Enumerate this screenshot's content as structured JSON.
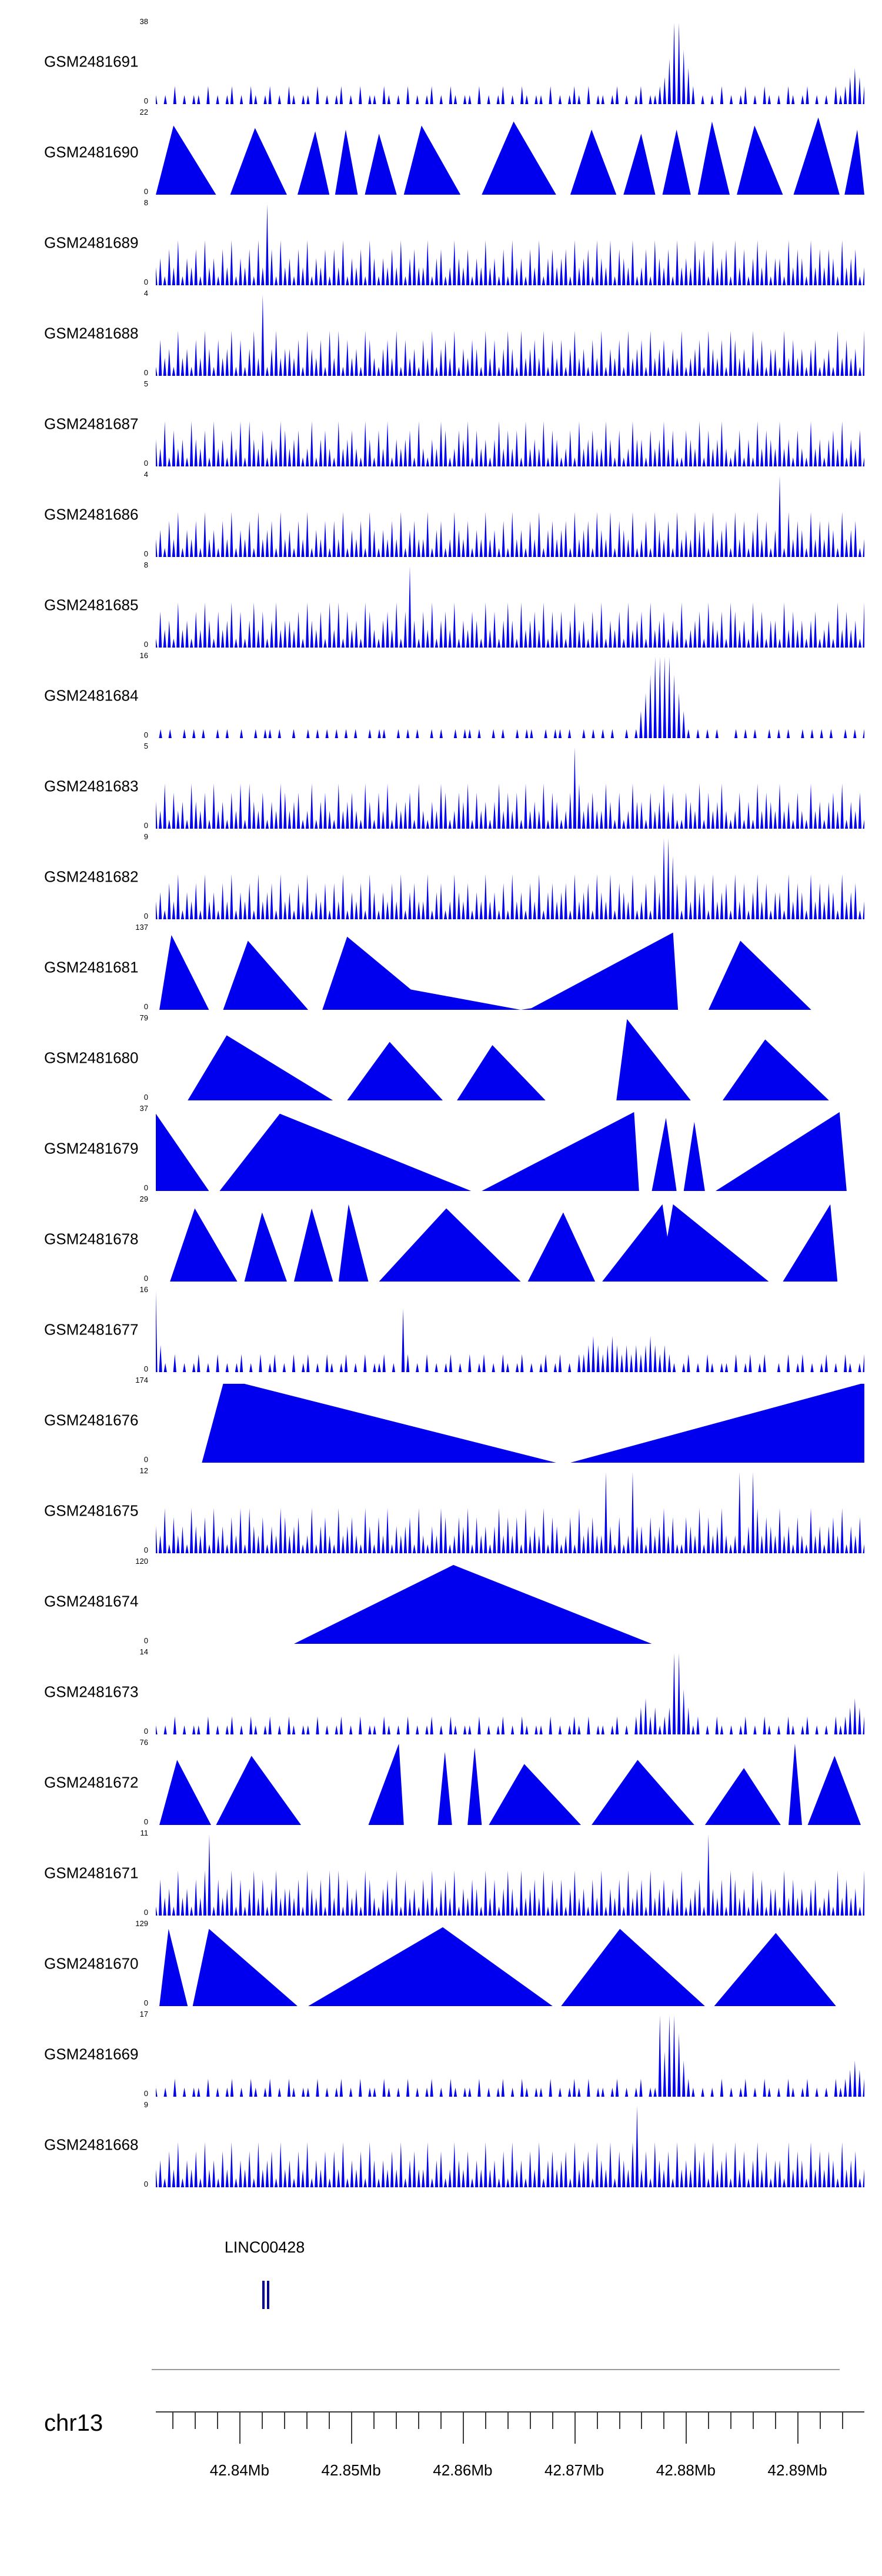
{
  "colors": {
    "signal": "#0000ee",
    "gene": "#00008b",
    "axis": "#3a3a3a",
    "divider": "#9a9a9a"
  },
  "chart_data": {
    "type": "area",
    "subtype": "genome-browser-coverage-tracks",
    "gene_track": {
      "label": "LINC00428",
      "exons_frac": [
        0.15,
        0.157
      ]
    },
    "genome_axis": {
      "chromosome": "chr13",
      "start_mb": 42.8325,
      "end_mb": 42.896,
      "minor_tick_start_mb": 42.834,
      "minor_tick_step_mb": 0.002,
      "major_ticks_mb": [
        42.84,
        42.85,
        42.86,
        42.87,
        42.88,
        42.89
      ],
      "major_tick_labels": [
        "42.84Mb",
        "42.85Mb",
        "42.86Mb",
        "42.87Mb",
        "42.88Mb",
        "42.89Mb"
      ]
    },
    "tracks": [
      {
        "name": "GSM2481691",
        "ymax": "38",
        "ymin": "0",
        "style": "spikes",
        "profile": [
          "1010201011",
          "0201012010",
          "2101201021",
          "0110201012",
          "0102011021",
          "0102010120",
          "1021011020",
          "1012010210",
          "1102010121",
          "0201101201",
          "0120112359",
          "9642010102",
          "0101201021",
          "0102101201",
          "0102123432"
        ]
      },
      {
        "name": "GSM2481690",
        "ymax": "22",
        "ymin": "0",
        "style": "poly",
        "points": [
          [
            0,
            0
          ],
          [
            0.025,
            0.85
          ],
          [
            0.085,
            0
          ],
          [
            0.105,
            0
          ],
          [
            0.14,
            0.82
          ],
          [
            0.185,
            0
          ],
          [
            0.2,
            0
          ],
          [
            0.225,
            0.78
          ],
          [
            0.245,
            0
          ],
          [
            0.253,
            0
          ],
          [
            0.268,
            0.8
          ],
          [
            0.285,
            0
          ],
          [
            0.295,
            0
          ],
          [
            0.315,
            0.75
          ],
          [
            0.34,
            0
          ],
          [
            0.35,
            0
          ],
          [
            0.375,
            0.85
          ],
          [
            0.43,
            0
          ],
          [
            0.46,
            0
          ],
          [
            0.505,
            0.9
          ],
          [
            0.565,
            0
          ],
          [
            0.585,
            0
          ],
          [
            0.615,
            0.8
          ],
          [
            0.65,
            0
          ],
          [
            0.66,
            0
          ],
          [
            0.685,
            0.75
          ],
          [
            0.705,
            0
          ],
          [
            0.715,
            0
          ],
          [
            0.735,
            0.8
          ],
          [
            0.755,
            0
          ],
          [
            0.765,
            0
          ],
          [
            0.785,
            0.9
          ],
          [
            0.81,
            0
          ],
          [
            0.82,
            0
          ],
          [
            0.845,
            0.85
          ],
          [
            0.885,
            0
          ],
          [
            0.9,
            0
          ],
          [
            0.935,
            0.95
          ],
          [
            0.965,
            0
          ],
          [
            0.972,
            0
          ],
          [
            0.99,
            0.8
          ],
          [
            1,
            0
          ]
        ]
      },
      {
        "name": "GSM2481689",
        "ymax": "8",
        "ymin": "0",
        "style": "spikes",
        "profile": [
          "2314251324",
          "1523142513",
          "2415294152",
          "3142513241",
          "4251324153",
          "1324251342",
          "2513412532",
          "4132523141",
          "5231425134",
          "2341523415",
          "3251432512",
          "4153241523",
          "2534152341",
          "5241352413",
          "3152431524",
          "2431523412"
        ]
      },
      {
        "name": "GSM2481688",
        "ymax": "4",
        "ymin": "0",
        "style": "spikes",
        "profile": [
          "1423152314",
          "2531423514",
          "1352913523",
          "3241532415",
          "2514231542",
          "1342514231",
          "4251342513",
          "2431524135",
          "3152342514",
          "2413523142",
          "5132415234",
          "1523413251",
          "2341532415",
          "4231524133",
          "1524231341",
          "2315242315"
        ]
      },
      {
        "name": "GSM2481687",
        "ymax": "5",
        "ymin": "0",
        "style": "spikes",
        "profile": [
          "3251423153",
          "2415231425",
          "1532413254",
          "2341251342",
          "1523421531",
          "4251323415",
          "2132541243",
          "5142313524",
          "2415232514",
          "3124152342",
          "2531412533",
          "1423524114",
          "3251423521",
          "2413152432",
          "5231421523",
          "1342513241"
        ]
      },
      {
        "name": "GSM2481686",
        "ymax": "4",
        "ymin": "0",
        "style": "spikes",
        "profile": [
          "2314251324",
          "1523142513",
          "2415234152",
          "3142513241",
          "4251324153",
          "1324251342",
          "2513412532",
          "4132523141",
          "5231425134",
          "2341523415",
          "3251432512",
          "4153241523",
          "2534152341",
          "5241352413",
          "9152431524",
          "2431523412"
        ]
      },
      {
        "name": "GSM2481685",
        "ymax": "8",
        "ymin": "0",
        "style": "spikes",
        "profile": [
          "1423152314",
          "2531423514",
          "1352413523",
          "3241532415",
          "2514231542",
          "1342514931",
          "4251342513",
          "2431524135",
          "3152342514",
          "2413523142",
          "5132415234",
          "1523413251",
          "2341532415",
          "4231524133",
          "1524231341",
          "2315242315"
        ]
      },
      {
        "name": "GSM2481684",
        "ymax": "16",
        "ymin": "0",
        "style": "spikes",
        "profile": [
          "0101001010",
          "1001010010",
          "0101101001",
          "0010101010",
          "1010010110",
          "0101010010",
          "1001011010",
          "0101001011",
          "0010110100",
          "1010101001",
          "0135799997",
          "5310101010",
          "0010101001",
          "0101001010",
          "1010010101"
        ]
      },
      {
        "name": "GSM2481683",
        "ymax": "5",
        "ymin": "0",
        "style": "spikes",
        "profile": [
          "3251423153",
          "2415231425",
          "1532413254",
          "2341251342",
          "1523421531",
          "4251323415",
          "2132541243",
          "5142313524",
          "2415232514",
          "3124952342",
          "2531412533",
          "1423524114",
          "3251423521",
          "2413152432",
          "5231421523",
          "1342513241"
        ]
      },
      {
        "name": "GSM2481682",
        "ymax": "9",
        "ymin": "0",
        "style": "spikes",
        "profile": [
          "2314251324",
          "1523142513",
          "2415234152",
          "3142513241",
          "4251324153",
          "1324251342",
          "2513412532",
          "4132523141",
          "5231425134",
          "2341523415",
          "3251432512",
          "4153997415",
          "2534152341",
          "5241352413",
          "3152431524",
          "2431523412"
        ]
      },
      {
        "name": "GSM2481681",
        "ymax": "137",
        "ymin": "0",
        "style": "poly",
        "points": [
          [
            0.005,
            0
          ],
          [
            0.022,
            0.92
          ],
          [
            0.075,
            0
          ],
          [
            0.095,
            0
          ],
          [
            0.13,
            0.85
          ],
          [
            0.215,
            0
          ],
          [
            0.235,
            0
          ],
          [
            0.27,
            0.9
          ],
          [
            0.36,
            0.25
          ],
          [
            0.515,
            0
          ],
          [
            0.53,
            0.02
          ],
          [
            0.73,
            0.95
          ],
          [
            0.737,
            0
          ],
          [
            0.78,
            0
          ],
          [
            0.825,
            0.85
          ],
          [
            0.925,
            0
          ]
        ]
      },
      {
        "name": "GSM2481680",
        "ymax": "79",
        "ymin": "0",
        "style": "poly",
        "points": [
          [
            0.045,
            0
          ],
          [
            0.1,
            0.8
          ],
          [
            0.25,
            0
          ],
          [
            0.27,
            0
          ],
          [
            0.33,
            0.72
          ],
          [
            0.405,
            0
          ],
          [
            0.425,
            0
          ],
          [
            0.475,
            0.68
          ],
          [
            0.55,
            0
          ],
          [
            0.65,
            0
          ],
          [
            0.665,
            1
          ],
          [
            0.755,
            0
          ],
          [
            0.8,
            0
          ],
          [
            0.86,
            0.75
          ],
          [
            0.95,
            0
          ]
        ]
      },
      {
        "name": "GSM2481679",
        "ymax": "37",
        "ymin": "0",
        "style": "poly",
        "points": [
          [
            0,
            0.95
          ],
          [
            0.075,
            0
          ],
          [
            0.09,
            0
          ],
          [
            0.175,
            0.95
          ],
          [
            0.445,
            0
          ],
          [
            0.46,
            0
          ],
          [
            0.675,
            0.97
          ],
          [
            0.682,
            0
          ],
          [
            0.7,
            0
          ],
          [
            0.72,
            0.9
          ],
          [
            0.735,
            0
          ],
          [
            0.745,
            0
          ],
          [
            0.76,
            0.85
          ],
          [
            0.775,
            0
          ],
          [
            0.79,
            0
          ],
          [
            0.965,
            0.97
          ],
          [
            0.975,
            0
          ]
        ]
      },
      {
        "name": "GSM2481678",
        "ymax": "29",
        "ymin": "0",
        "style": "poly",
        "points": [
          [
            0.02,
            0
          ],
          [
            0.055,
            0.9
          ],
          [
            0.115,
            0
          ],
          [
            0.125,
            0
          ],
          [
            0.15,
            0.85
          ],
          [
            0.185,
            0
          ],
          [
            0.195,
            0
          ],
          [
            0.22,
            0.9
          ],
          [
            0.25,
            0
          ],
          [
            0.258,
            0
          ],
          [
            0.272,
            0.95
          ],
          [
            0.3,
            0
          ],
          [
            0.315,
            0
          ],
          [
            0.41,
            0.9
          ],
          [
            0.515,
            0
          ],
          [
            0.525,
            0
          ],
          [
            0.575,
            0.85
          ],
          [
            0.62,
            0
          ],
          [
            0.63,
            0
          ],
          [
            0.715,
            0.95
          ],
          [
            0.722,
            0.55
          ],
          [
            0.73,
            0.95
          ],
          [
            0.865,
            0
          ],
          [
            0.885,
            0
          ],
          [
            0.952,
            0.95
          ],
          [
            0.962,
            0
          ]
        ]
      },
      {
        "name": "GSM2481677",
        "ymax": "16",
        "ymin": "0",
        "style": "spikes",
        "profile": [
          "9310201012",
          "0102010120",
          "1020120102",
          "0120102101",
          "2010201120",
          "1072010201",
          "0120102012",
          "0102101201",
          "0120120102",
          "2343234323",
          "2323432321",
          "0120102101",
          "1020120120",
          "0102012010",
          "1201021012"
        ]
      },
      {
        "name": "GSM2481676",
        "ymax": "174",
        "ymin": "0",
        "style": "poly",
        "points": [
          [
            0.065,
            0
          ],
          [
            0.095,
            0.97
          ],
          [
            0.125,
            0.97
          ],
          [
            0.565,
            0
          ],
          [
            0.585,
            0
          ],
          [
            0.995,
            0.97
          ],
          [
            1,
            0.97
          ]
        ]
      },
      {
        "name": "GSM2481675",
        "ymax": "12",
        "ymin": "0",
        "style": "spikes",
        "profile": [
          "3251423153",
          "2415231425",
          "1532413254",
          "2341251342",
          "1523421531",
          "4251323415",
          "2132541243",
          "5142313524",
          "2415232514",
          "3124152342",
          "2931412933",
          "1423524114",
          "3251423521",
          "2913952432",
          "5231421523",
          "1342513241"
        ]
      },
      {
        "name": "GSM2481674",
        "ymax": "120",
        "ymin": "0",
        "style": "poly",
        "points": [
          [
            0.195,
            0
          ],
          [
            0.42,
            0.97
          ],
          [
            0.7,
            0
          ]
        ]
      },
      {
        "name": "GSM2481673",
        "ymax": "14",
        "ymin": "0",
        "style": "spikes",
        "profile": [
          "1010201011",
          "0201012010",
          "2101201021",
          "0110201012",
          "0102011021",
          "0102010120",
          "1021011020",
          "1012010210",
          "1102010121",
          "0201101201",
          "0234231239",
          "9531201021",
          "0101201021",
          "0102101201",
          "0102123432"
        ]
      },
      {
        "name": "GSM2481672",
        "ymax": "76",
        "ymin": "0",
        "style": "poly",
        "points": [
          [
            0.005,
            0
          ],
          [
            0.03,
            0.8
          ],
          [
            0.078,
            0
          ],
          [
            0.085,
            0
          ],
          [
            0.135,
            0.85
          ],
          [
            0.205,
            0
          ],
          [
            0.3,
            0
          ],
          [
            0.343,
            1
          ],
          [
            0.35,
            0
          ],
          [
            0.398,
            0
          ],
          [
            0.408,
            0.9
          ],
          [
            0.418,
            0
          ],
          [
            0.44,
            0
          ],
          [
            0.45,
            0.95
          ],
          [
            0.46,
            0
          ],
          [
            0.47,
            0
          ],
          [
            0.52,
            0.75
          ],
          [
            0.6,
            0
          ],
          [
            0.615,
            0
          ],
          [
            0.68,
            0.8
          ],
          [
            0.76,
            0
          ],
          [
            0.775,
            0
          ],
          [
            0.83,
            0.7
          ],
          [
            0.882,
            0
          ],
          [
            0.893,
            0
          ],
          [
            0.902,
            1
          ],
          [
            0.912,
            0
          ],
          [
            0.92,
            0
          ],
          [
            0.958,
            0.85
          ],
          [
            0.995,
            0
          ]
        ]
      },
      {
        "name": "GSM2481671",
        "ymax": "11",
        "ymin": "0",
        "style": "spikes",
        "profile": [
          "1423152314",
          "2591423514",
          "1352413523",
          "3241532415",
          "2514231542",
          "1342514231",
          "4251342513",
          "2431524135",
          "3152342514",
          "2413523142",
          "5132415234",
          "1523413251",
          "2341932415",
          "4231524133",
          "1524231341",
          "2315242315"
        ]
      },
      {
        "name": "GSM2481670",
        "ymax": "129",
        "ymin": "0",
        "style": "poly",
        "points": [
          [
            0.005,
            0
          ],
          [
            0.018,
            0.95
          ],
          [
            0.045,
            0
          ],
          [
            0.052,
            0
          ],
          [
            0.075,
            0.95
          ],
          [
            0.2,
            0
          ],
          [
            0.215,
            0
          ],
          [
            0.405,
            0.97
          ],
          [
            0.56,
            0
          ],
          [
            0.572,
            0
          ],
          [
            0.655,
            0.95
          ],
          [
            0.775,
            0
          ],
          [
            0.788,
            0
          ],
          [
            0.875,
            0.9
          ],
          [
            0.96,
            0
          ]
        ]
      },
      {
        "name": "GSM2481669",
        "ymax": "17",
        "ymin": "0",
        "style": "spikes",
        "profile": [
          "1010201011",
          "0201012010",
          "2101201021",
          "0110201012",
          "0102011021",
          "0102010120",
          "1021011020",
          "1012010210",
          "1102010121",
          "0201101201",
          "0120119599",
          "7421010102",
          "0101201021",
          "0102101201",
          "0102123432"
        ]
      },
      {
        "name": "GSM2481668",
        "ymax": "9",
        "ymin": "0",
        "style": "spikes",
        "profile": [
          "2314251324",
          "1523142513",
          "2415234152",
          "3142513241",
          "4251324153",
          "1324251342",
          "2513412532",
          "4132523141",
          "5231425134",
          "2341523415",
          "3251432592",
          "4153241523",
          "2534152341",
          "5241352413",
          "3152431524",
          "2431523412"
        ]
      }
    ]
  }
}
